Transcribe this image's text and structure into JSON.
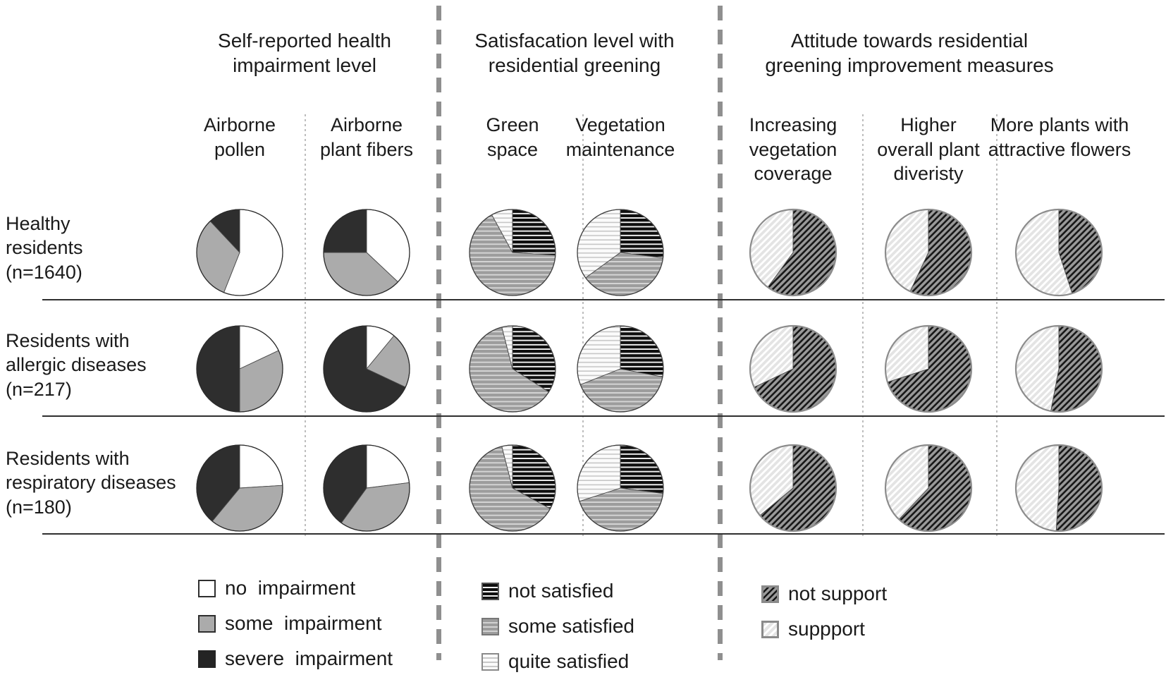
{
  "sections": [
    {
      "title": "Self-reported health\nimpairment level",
      "columns": [
        "Airborne\npollen",
        "Airborne\nplant fibers"
      ]
    },
    {
      "title": "Satisfacation level with\nresidential greening",
      "columns": [
        "Green\nspace",
        "Vegetation\nmaintenance"
      ]
    },
    {
      "title": "Attitude towards residential\ngreening improvement measures",
      "columns": [
        "Increasing\nvegetation\ncoverage",
        "Higher\noverall plant\ndiveristy",
        "More plants with\nattractive flowers"
      ]
    }
  ],
  "row_labels": [
    "Healthy\nresidents\n(n=1640)",
    "Residents with\nallergic diseases\n(n=217)",
    "Residents with\nrespiratory diseases\n(n=180)"
  ],
  "legends": [
    {
      "items": [
        {
          "label": "no  impairment",
          "pattern": "white-solid"
        },
        {
          "label": "some  impairment",
          "pattern": "gray-solid"
        },
        {
          "label": "severe  impairment",
          "pattern": "black-solid"
        }
      ]
    },
    {
      "items": [
        {
          "label": "not satisfied",
          "pattern": "black-horizontal-stripes"
        },
        {
          "label": "some satisfied",
          "pattern": "gray-horizontal-stripes"
        },
        {
          "label": "quite satisfied",
          "pattern": "light-horizontal-stripes"
        }
      ]
    },
    {
      "items": [
        {
          "label": "not support",
          "pattern": "dark-diagonal-hatch"
        },
        {
          "label": "suppport",
          "pattern": "light-diagonal-stripes"
        }
      ]
    }
  ],
  "colors": {
    "pie_white": "#ffffff",
    "pie_gray": "#ababab",
    "pie_dark": "#2e2e2e",
    "stripe_black_bg": "#0f0f0f",
    "stripe_gray_bg": "#9d9d9d",
    "stripe_light_bg": "#fbfbfb",
    "hatch_dark_line": "#161616",
    "hatch_gray_bg": "#999999",
    "hatch_light_bg": "#e4e4e4",
    "divider_gray": "#8f8f8f"
  },
  "chart_data": {
    "type": "pie",
    "note": "percentages estimated from slice angles; each row shows one resident group across seven measures",
    "series_legends": {
      "impairment": [
        "no impairment",
        "some impairment",
        "severe impairment"
      ],
      "satisfaction": [
        "not satisfied",
        "some satisfied",
        "quite satisfied"
      ],
      "attitude": [
        "not support",
        "suppport"
      ]
    },
    "columns": [
      {
        "label": "Airborne pollen",
        "series": "impairment"
      },
      {
        "label": "Airborne plant fibers",
        "series": "impairment"
      },
      {
        "label": "Green space",
        "series": "satisfaction"
      },
      {
        "label": "Vegetation maintenance",
        "series": "satisfaction"
      },
      {
        "label": "Increasing vegetation coverage",
        "series": "attitude"
      },
      {
        "label": "Higher overall plant diveristy",
        "series": "attitude"
      },
      {
        "label": "More plants with attractive flowers",
        "series": "attitude"
      }
    ],
    "rows": [
      {
        "label": "Healthy residents (n=1640)",
        "values": [
          [
            56,
            32,
            12
          ],
          [
            37,
            38,
            25
          ],
          [
            26,
            66,
            8
          ],
          [
            27,
            38,
            35
          ],
          [
            60,
            40
          ],
          [
            57,
            43
          ],
          [
            45,
            55
          ]
        ]
      },
      {
        "label": "Residents with allergic diseases (n=217)",
        "values": [
          [
            18,
            32,
            50
          ],
          [
            11,
            21,
            68
          ],
          [
            34,
            62,
            4
          ],
          [
            28,
            41,
            31
          ],
          [
            68,
            32
          ],
          [
            70,
            30
          ],
          [
            53,
            47
          ]
        ]
      },
      {
        "label": "Residents with respiratory diseases (n=180)",
        "values": [
          [
            24,
            37,
            39
          ],
          [
            23,
            37,
            40
          ],
          [
            33,
            63,
            4
          ],
          [
            27,
            43,
            30
          ],
          [
            64,
            36
          ],
          [
            62,
            38
          ],
          [
            51,
            49
          ]
        ]
      }
    ]
  }
}
